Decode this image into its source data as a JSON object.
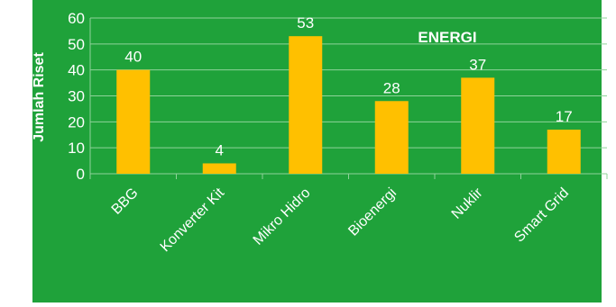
{
  "chart_data": {
    "type": "bar",
    "title": "ENERGI",
    "xlabel": "",
    "ylabel": "Jumlah Riset",
    "categories": [
      "BBG",
      "Konverter Kit",
      "Mikro Hidro",
      "Bioenergi",
      "Nuklir",
      "Smart Grid"
    ],
    "values": [
      40,
      4,
      53,
      28,
      37,
      17
    ],
    "ylim": [
      0,
      60
    ],
    "yticks": [
      0,
      10,
      20,
      30,
      40,
      50,
      60
    ],
    "grid": true,
    "legend": "none",
    "data_labels": true,
    "colors": {
      "background": "#1fa23a",
      "bar": "#ffc000",
      "grid": "#8fd39a",
      "text": "#ffffff",
      "page": "#ffffff"
    }
  }
}
